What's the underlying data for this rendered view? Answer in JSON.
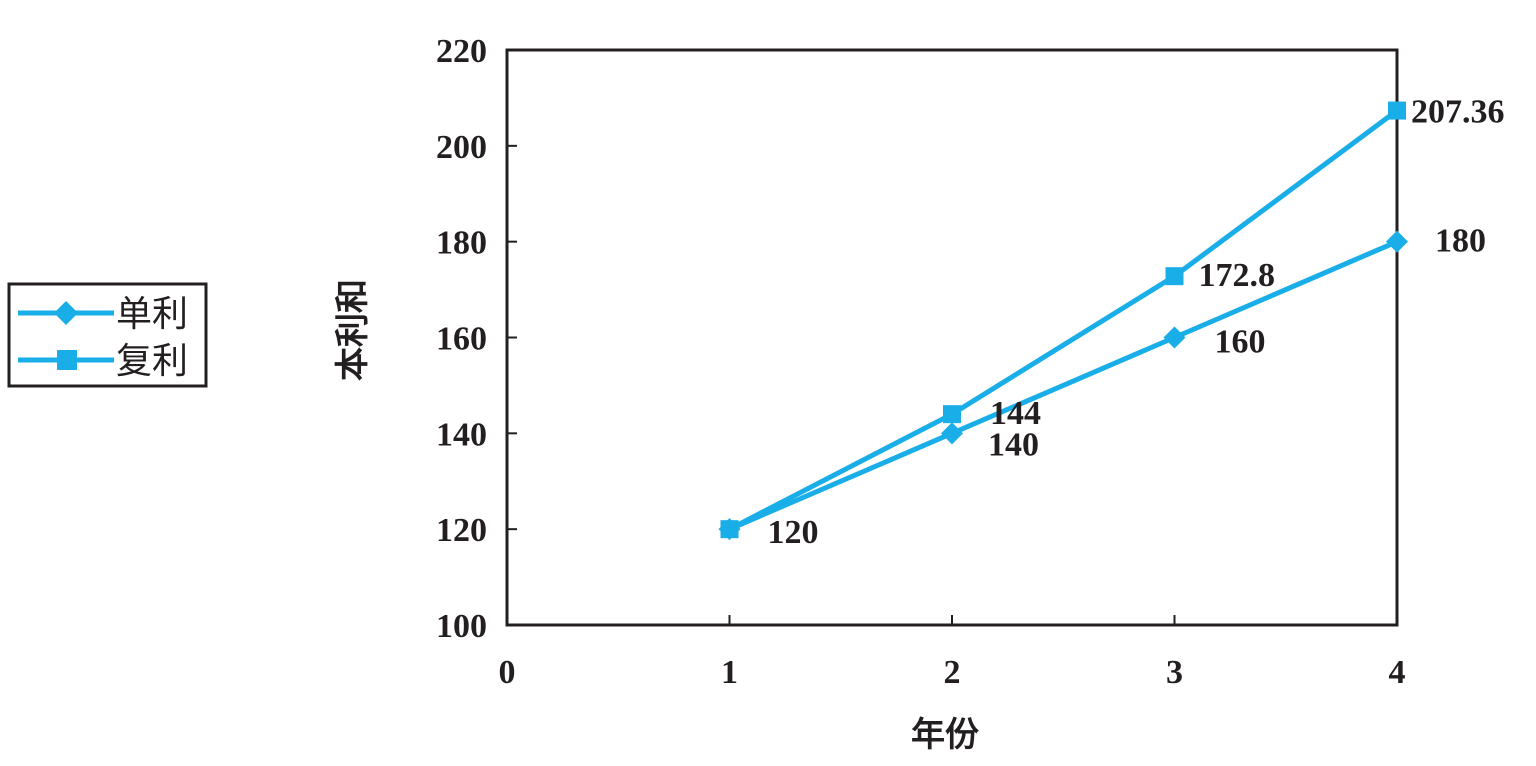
{
  "chart_data": {
    "type": "line",
    "title": "",
    "xlabel": "年份",
    "ylabel": "本利和",
    "xlim": [
      0,
      4
    ],
    "ylim": [
      100,
      220
    ],
    "xticks": [
      0,
      1,
      2,
      3,
      4
    ],
    "yticks": [
      100,
      120,
      140,
      160,
      180,
      200,
      220
    ],
    "grid": false,
    "legend_position": "left",
    "series": [
      {
        "name": "单利",
        "marker": "diamond",
        "color": "#1aaee8",
        "x": [
          1,
          2,
          3,
          4
        ],
        "y": [
          120,
          140,
          160,
          180
        ],
        "labels": [
          "120",
          "140",
          "160",
          "180"
        ]
      },
      {
        "name": "复利",
        "marker": "square",
        "color": "#1aaee8",
        "x": [
          1,
          2,
          3,
          4
        ],
        "y": [
          120,
          144,
          172.8,
          207.36
        ],
        "labels": [
          "",
          "144",
          "172.8",
          "207.36"
        ]
      }
    ]
  }
}
